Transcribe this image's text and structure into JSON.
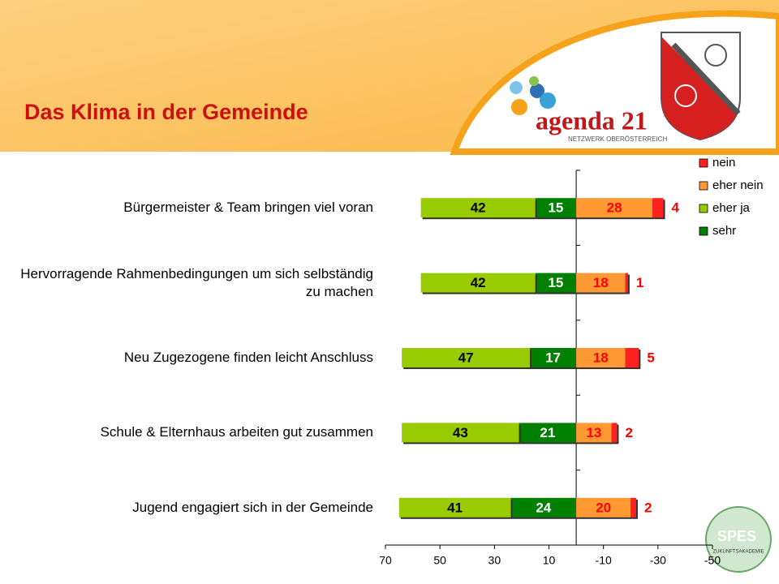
{
  "header": {
    "logo_text": "agenda 21",
    "logo_subtext": "NETZWERK OBERÖSTERREICH",
    "badge_text": "SPES",
    "badge_subtext": "ZUKUNFTSAKADEMIE"
  },
  "chart_data": {
    "type": "diverging_bar",
    "title": "Das Klima in der Gemeinde",
    "categories": [
      "Bürgermeister & Team bringen viel voran",
      "Hervorragende Rahmenbedingungen um sich selbständig zu machen",
      "Neu Zugezogene finden leicht Anschluss",
      "Schule & Elternhaus arbeiten gut zusammen",
      "Jugend engagiert sich in der Gemeinde"
    ],
    "series": [
      {
        "name": "nein",
        "color": "#ff2020",
        "values": [
          -4,
          -1,
          -5,
          -2,
          -2
        ],
        "value_labels": [
          "4",
          "1",
          "5",
          "2",
          "2"
        ],
        "label_color": "#ff0000",
        "label_position": "outside"
      },
      {
        "name": "eher nein",
        "color": "#ff9933",
        "values": [
          -28,
          -18,
          -18,
          -13,
          -20
        ],
        "value_labels": [
          "28",
          "18",
          "18",
          "13",
          "20"
        ],
        "label_color": "#ff0000",
        "label_position": "inside"
      },
      {
        "name": "eher ja",
        "color": "#99cc00",
        "values": [
          42,
          42,
          47,
          43,
          41
        ],
        "label_color": "#000000",
        "label_position": "inside"
      },
      {
        "name": "sehr",
        "color": "#008000",
        "values": [
          15,
          15,
          17,
          21,
          24
        ],
        "label_color": "#ffffff",
        "label_position": "inside"
      }
    ],
    "xlim": [
      70,
      -50
    ],
    "xticks": [
      70,
      50,
      30,
      10,
      -10,
      -30,
      -50
    ],
    "legend": "top-right"
  }
}
